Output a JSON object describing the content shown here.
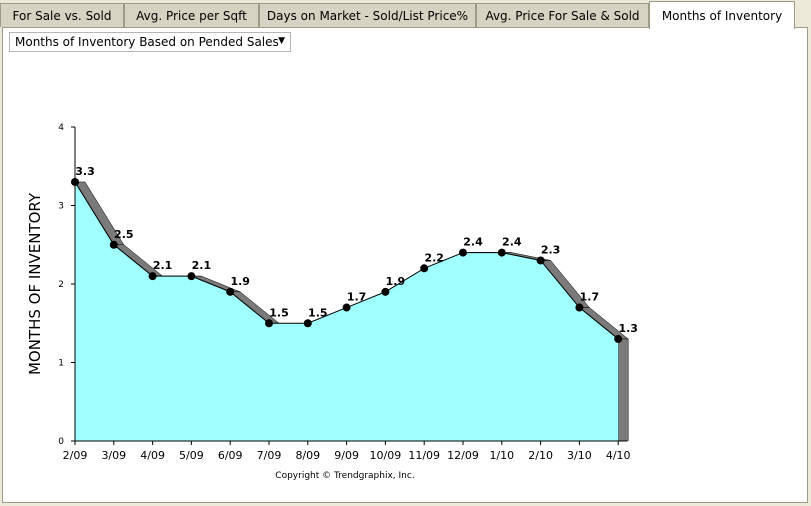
{
  "tabs": [
    {
      "label": "For Sale vs. Sold"
    },
    {
      "label": "Avg. Price per Sqft"
    },
    {
      "label": "Days on Market - Sold/List Price%"
    },
    {
      "label": "Avg. Price For Sale & Sold"
    },
    {
      "label": "Months of Inventory"
    }
  ],
  "active_tab": "Months of Inventory",
  "dropdown": {
    "selected": "Months of Inventory Based on Pended Sales"
  },
  "colors": {
    "fill": "#a0ffff",
    "shadow": "#7a7a7a",
    "point": "#000000"
  },
  "chart_data": {
    "type": "area",
    "categories": [
      "2/09",
      "3/09",
      "4/09",
      "5/09",
      "6/09",
      "7/09",
      "8/09",
      "9/09",
      "10/09",
      "11/09",
      "12/09",
      "1/10",
      "2/10",
      "3/10",
      "4/10"
    ],
    "values": [
      3.3,
      2.5,
      2.1,
      2.1,
      1.9,
      1.5,
      1.5,
      1.7,
      1.9,
      2.2,
      2.4,
      2.4,
      2.3,
      1.7,
      1.3
    ],
    "ylabel": "MONTHS OF INVENTORY",
    "ylim": [
      0,
      4
    ],
    "yticks": [
      0,
      1,
      2,
      3,
      4
    ],
    "footer": "Copyright © Trendgraphix, Inc."
  }
}
